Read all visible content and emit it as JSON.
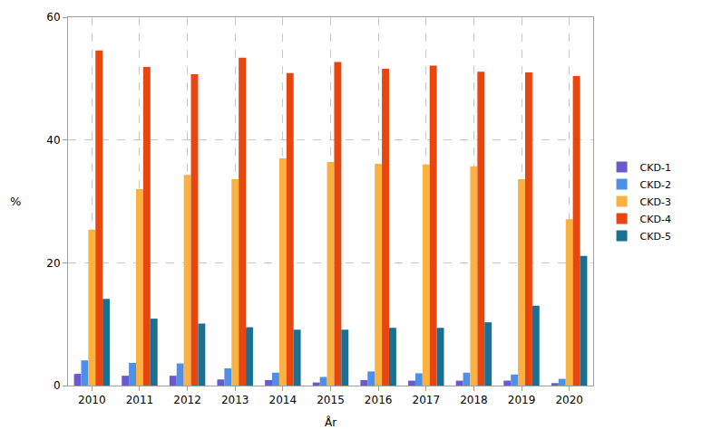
{
  "chart_data": {
    "type": "bar",
    "xlabel": "År",
    "ylabel": "%",
    "categories": [
      "2010",
      "2011",
      "2012",
      "2013",
      "2014",
      "2015",
      "2016",
      "2017",
      "2018",
      "2019",
      "2020"
    ],
    "series": [
      {
        "name": "CKD-1",
        "color": "#6A5ACD",
        "values": [
          1.9,
          1.6,
          1.6,
          1.0,
          0.9,
          0.5,
          0.9,
          0.8,
          0.8,
          0.8,
          0.4
        ]
      },
      {
        "name": "CKD-2",
        "color": "#4F8FE8",
        "values": [
          4.1,
          3.7,
          3.6,
          2.8,
          2.1,
          1.4,
          2.3,
          2.0,
          2.1,
          1.8,
          1.1
        ]
      },
      {
        "name": "CKD-3",
        "color": "#FBB040",
        "values": [
          25.4,
          32.0,
          34.3,
          33.6,
          37.0,
          36.4,
          36.1,
          36.0,
          35.7,
          33.6,
          27.1
        ]
      },
      {
        "name": "CKD-4",
        "color": "#E8450F",
        "values": [
          54.6,
          51.9,
          50.7,
          53.4,
          50.9,
          52.7,
          51.6,
          52.1,
          51.1,
          51.0,
          50.4
        ]
      },
      {
        "name": "CKD-5",
        "color": "#1A6F94",
        "values": [
          14.1,
          10.9,
          10.1,
          9.5,
          9.1,
          9.1,
          9.4,
          9.4,
          10.3,
          13.0,
          21.1
        ]
      }
    ],
    "ylim": [
      0,
      60
    ],
    "yticks": [
      0,
      20,
      40,
      60
    ],
    "grid": true,
    "legend": "right"
  }
}
